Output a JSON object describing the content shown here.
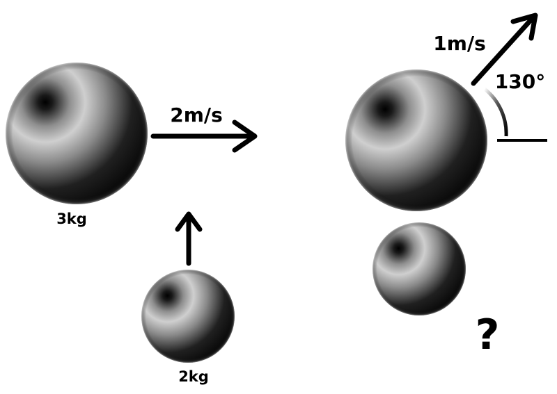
{
  "before": {
    "large_ball": {
      "mass_label": "3kg",
      "velocity_label": "2m/s"
    },
    "small_ball": {
      "mass_label": "2kg"
    }
  },
  "after": {
    "large_ball": {
      "velocity_label": "1m/s",
      "angle_label": "130°"
    },
    "small_ball": {
      "unknown_label": "?"
    }
  },
  "colors": {
    "ink": "#000000",
    "ball_dark": "#050505",
    "ball_light": "#c4c4c4",
    "background": "#ffffff"
  },
  "icons": {
    "arrow": "arrow-icon",
    "angle_arc": "angle-arc-icon"
  }
}
